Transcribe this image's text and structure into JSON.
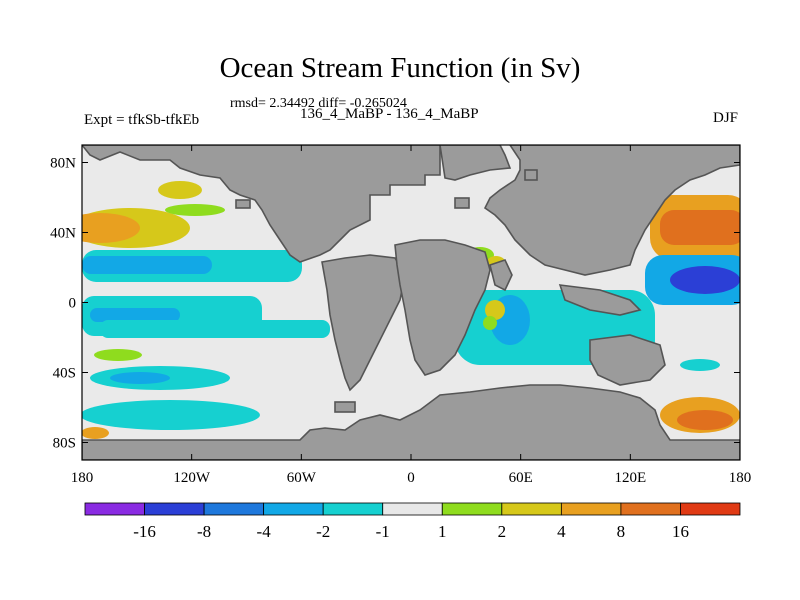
{
  "figure": {
    "title": "Ocean Stream Function (in Sv)",
    "stats_line": "rmsd= 2.34492  diff= -0.265024",
    "left_label": "Expt = tfkSb-tfkEb",
    "center_label": "136_4_MaBP - 136_4_MaBP",
    "right_label": "DJF"
  },
  "colors": {
    "land": "#9b9b9b",
    "land_outline": "#555555",
    "neutral": "#eaeaea"
  },
  "chart_data": {
    "type": "heatmap",
    "title": "Ocean Stream Function (in Sv)",
    "units": "Sv",
    "x_axis": {
      "range": [
        -180,
        180
      ],
      "ticks": [
        -180,
        -120,
        -60,
        0,
        60,
        120,
        180
      ],
      "tick_labels": [
        "180",
        "120W",
        "60W",
        "0",
        "60E",
        "120E",
        "180"
      ]
    },
    "y_axis": {
      "range": [
        -90,
        90
      ],
      "ticks": [
        80,
        40,
        0,
        -40,
        -80
      ],
      "tick_labels": [
        "80N",
        "40N",
        "0",
        "40S",
        "80S"
      ]
    },
    "colorbar": {
      "boundaries": [
        "-16",
        "-8",
        "-4",
        "-2",
        "-1",
        "1",
        "2",
        "4",
        "8",
        "16"
      ],
      "colors": [
        "#8a2be2",
        "#2b3fd6",
        "#1e78dc",
        "#12a8e6",
        "#16d0d0",
        "#e8e8e8",
        "#8fdc1e",
        "#d6c81a",
        "#e8a020",
        "#e0701e",
        "#e03a14"
      ]
    },
    "features": [
      {
        "region": "North Pacific (west/central)",
        "level": "4 to 8",
        "lon": [
          -180,
          -130
        ],
        "lat": [
          25,
          45
        ]
      },
      {
        "region": "North Pacific tropics",
        "level": "-2 to -4",
        "lon": [
          -180,
          -60
        ],
        "lat": [
          5,
          25
        ]
      },
      {
        "region": "Northwest Pacific (east of Asia)",
        "level": "8 to 16",
        "lon": [
          135,
          180
        ],
        "lat": [
          25,
          50
        ]
      },
      {
        "region": "Western Pacific warm pool",
        "level": "-8 to -16",
        "lon": [
          148,
          175
        ],
        "lat": [
          0,
          20
        ]
      },
      {
        "region": "Southern Ocean band",
        "level": "-1 to -2",
        "lon": [
          -180,
          180
        ],
        "lat": [
          -30,
          -5
        ]
      },
      {
        "region": "South Pacific high latitudes",
        "level": "4 to 8",
        "lon": [
          140,
          180
        ],
        "lat": [
          -85,
          -60
        ]
      },
      {
        "region": "Indian Ocean",
        "level": "-2 to -4",
        "lon": [
          50,
          115
        ],
        "lat": [
          -45,
          5
        ]
      }
    ]
  }
}
